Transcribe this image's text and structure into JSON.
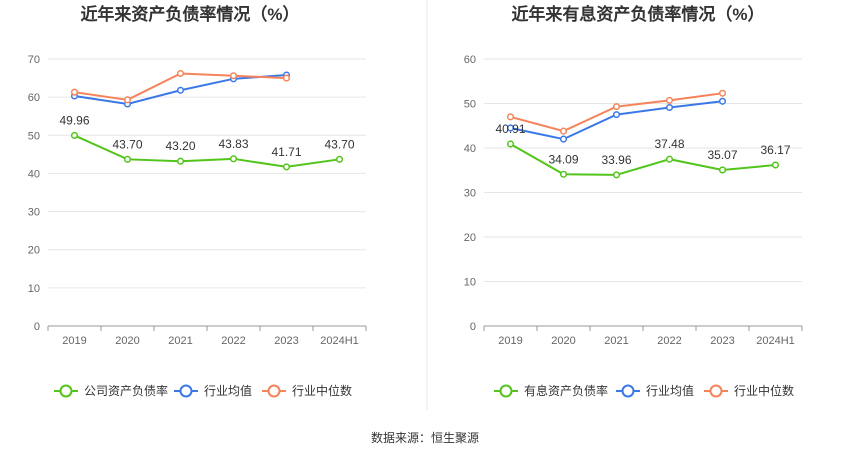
{
  "source_text": "数据来源：恒生聚源",
  "chart_data": [
    {
      "type": "line",
      "title": "近年来资产负债率情况（%）",
      "categories": [
        "2019",
        "2020",
        "2021",
        "2022",
        "2023",
        "2024H1"
      ],
      "ylim": [
        0,
        70
      ],
      "yticks": [
        0,
        10,
        20,
        30,
        40,
        50,
        60,
        70
      ],
      "grid": true,
      "legend_position": "bottom",
      "series": [
        {
          "name": "公司资产负债率",
          "color": "#52c41a",
          "values": [
            49.96,
            43.7,
            43.2,
            43.83,
            41.71,
            43.7
          ],
          "labels": [
            "49.96",
            "43.70",
            "43.20",
            "43.83",
            "41.71",
            "43.70"
          ]
        },
        {
          "name": "行业均值",
          "color": "#3b78e7",
          "values": [
            60.3,
            58.2,
            61.8,
            64.8,
            65.8,
            null
          ]
        },
        {
          "name": "行业中位数",
          "color": "#f5845b",
          "values": [
            61.3,
            59.3,
            66.2,
            65.6,
            65.0,
            null
          ]
        }
      ]
    },
    {
      "type": "line",
      "title": "近年来有息资产负债率情况（%）",
      "categories": [
        "2019",
        "2020",
        "2021",
        "2022",
        "2023",
        "2024H1"
      ],
      "ylim": [
        0,
        60
      ],
      "yticks": [
        0,
        10,
        20,
        30,
        40,
        50,
        60
      ],
      "grid": true,
      "legend_position": "bottom",
      "series": [
        {
          "name": "有息资产负债率",
          "color": "#52c41a",
          "values": [
            40.91,
            34.09,
            33.96,
            37.48,
            35.07,
            36.17
          ],
          "labels": [
            "40.91",
            "34.09",
            "33.96",
            "37.48",
            "35.07",
            "36.17"
          ]
        },
        {
          "name": "行业均值",
          "color": "#3b78e7",
          "values": [
            44.5,
            42.0,
            47.5,
            49.1,
            50.5,
            null
          ]
        },
        {
          "name": "行业中位数",
          "color": "#f5845b",
          "values": [
            47.0,
            43.8,
            49.3,
            50.7,
            52.3,
            null
          ]
        }
      ]
    }
  ]
}
